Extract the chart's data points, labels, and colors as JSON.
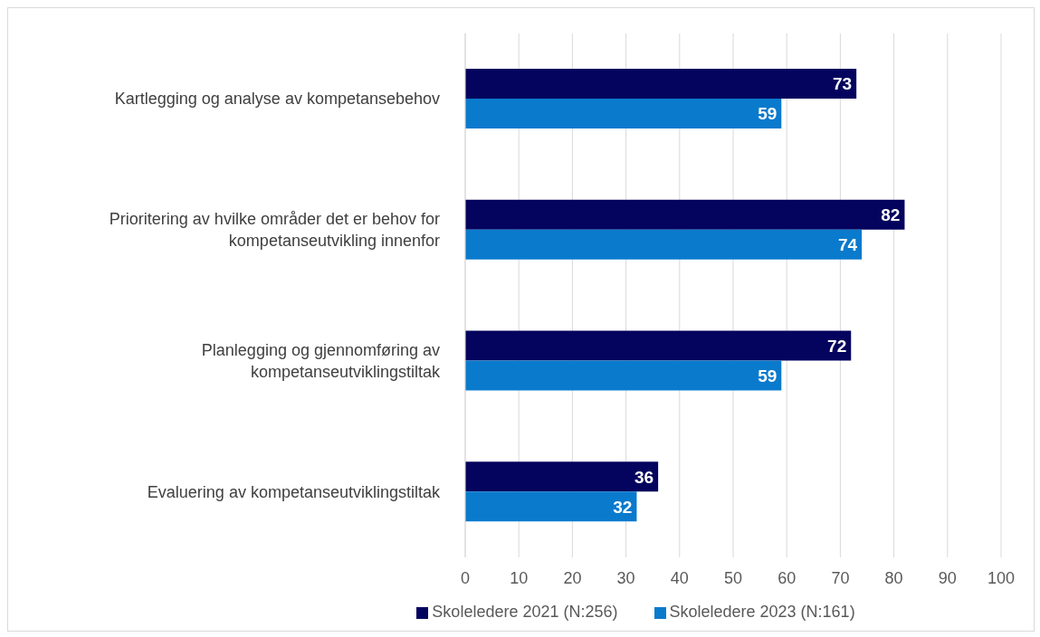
{
  "chart_data": {
    "type": "bar",
    "orientation": "horizontal",
    "categories": [
      "Kartlegging og analyse av kompetansebehov",
      "Prioritering av hvilke områder det er behov for kompetanseutvikling innenfor",
      "Planlegging og gjennomføring av kompetanseutviklingstiltak",
      "Evaluering av kompetanseutviklingstiltak"
    ],
    "series": [
      {
        "name": "Skoleledere 2021 (N:256)",
        "color": "#04045e",
        "values": [
          73,
          82,
          72,
          36
        ]
      },
      {
        "name": "Skoleledere 2023 (N:161)",
        "color": "#0a7acd",
        "values": [
          59,
          74,
          59,
          32
        ]
      }
    ],
    "xlim": [
      0,
      100
    ],
    "xticks": [
      0,
      10,
      20,
      30,
      40,
      50,
      60,
      70,
      80,
      90,
      100
    ],
    "grid": "x",
    "legend": "bottom",
    "data_labels": true
  }
}
